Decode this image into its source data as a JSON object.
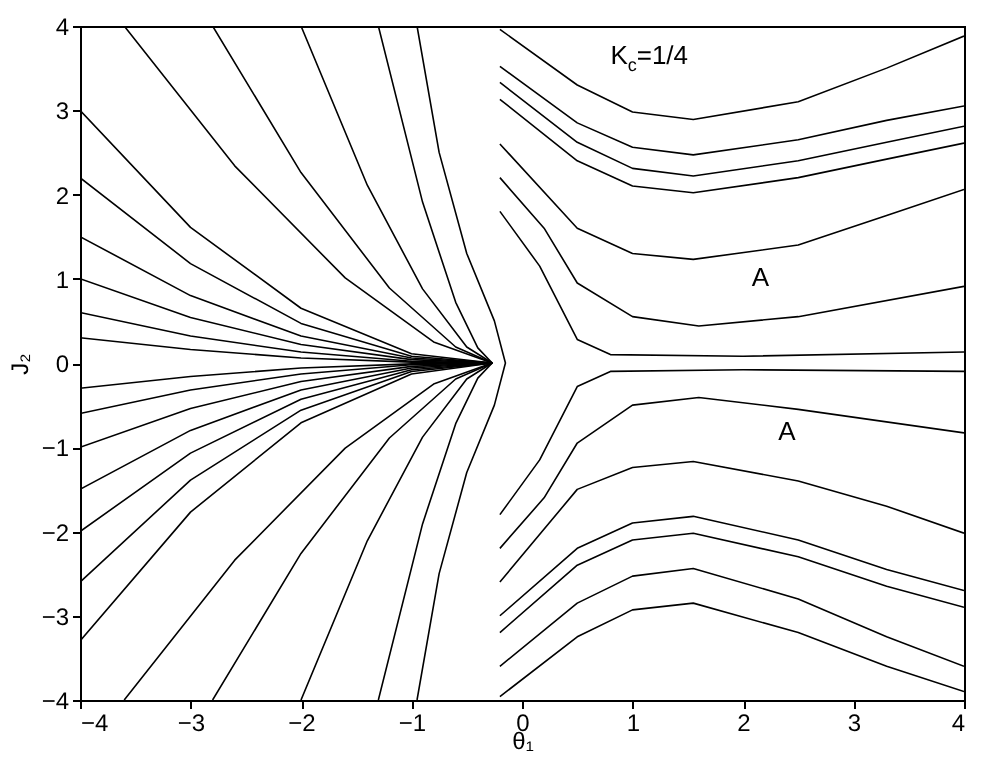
{
  "chart_data": {
    "type": "line",
    "xlabel": "θ₁",
    "ylabel": "J₂",
    "xlim": [
      -4,
      4
    ],
    "ylim": [
      -4,
      4
    ],
    "xticks": [
      -4,
      -3,
      -2,
      -1,
      0,
      1,
      2,
      3,
      4
    ],
    "yticks": [
      -4,
      -3,
      -2,
      -1,
      0,
      1,
      2,
      3,
      4
    ],
    "grid": false,
    "marker": "none",
    "line_style": "solid",
    "annotations": [
      "K$_{c}$=1/4",
      "A",
      "A"
    ],
    "series": [
      {
        "color": "#000000",
        "x": [
          -4,
          -3,
          -2,
          -1,
          -0.27
        ],
        "values": [
          3.0,
          1.61,
          0.65,
          0.11,
          0
        ]
      },
      {
        "color": "#000000",
        "x": [
          -4,
          -3,
          -2,
          -1,
          -0.27
        ],
        "values": [
          2.2,
          1.18,
          0.47,
          0.08,
          0
        ]
      },
      {
        "color": "#000000",
        "x": [
          -4,
          -3,
          -2,
          -1,
          -0.27
        ],
        "values": [
          1.5,
          0.8,
          0.32,
          0.06,
          0
        ]
      },
      {
        "color": "#000000",
        "x": [
          -4,
          -3,
          -2,
          -1,
          -0.27
        ],
        "values": [
          1.0,
          0.54,
          0.22,
          0.04,
          0
        ]
      },
      {
        "color": "#000000",
        "x": [
          -4,
          -3,
          -2,
          -1,
          -0.27
        ],
        "values": [
          0.6,
          0.32,
          0.13,
          0.02,
          0
        ]
      },
      {
        "color": "#000000",
        "x": [
          -4,
          -3,
          -2,
          -1,
          -0.27
        ],
        "values": [
          0.3,
          0.16,
          0.06,
          0.01,
          0
        ]
      },
      {
        "color": "#000000",
        "x": [
          -4,
          -3,
          -2,
          -1,
          -0.27
        ],
        "values": [
          -0.3,
          -0.16,
          -0.06,
          -0.01,
          0
        ]
      },
      {
        "color": "#000000",
        "x": [
          -4,
          -3,
          -2,
          -1,
          -0.27
        ],
        "values": [
          -0.6,
          -0.32,
          -0.13,
          -0.02,
          0
        ]
      },
      {
        "color": "#000000",
        "x": [
          -4,
          -3,
          -2,
          -1,
          -0.27
        ],
        "values": [
          -1.0,
          -0.54,
          -0.22,
          -0.04,
          0
        ]
      },
      {
        "color": "#000000",
        "x": [
          -4,
          -3,
          -2,
          -1,
          -0.27
        ],
        "values": [
          -1.5,
          -0.8,
          -0.32,
          -0.06,
          0
        ]
      },
      {
        "color": "#000000",
        "x": [
          -4,
          -3,
          -2,
          -1,
          -0.27
        ],
        "values": [
          -2.0,
          -1.07,
          -0.43,
          -0.08,
          0
        ]
      },
      {
        "color": "#000000",
        "x": [
          -4,
          -3,
          -2,
          -1,
          -0.27
        ],
        "values": [
          -2.6,
          -1.39,
          -0.56,
          -0.1,
          0
        ]
      },
      {
        "color": "#000000",
        "x": [
          -4,
          -3,
          -2,
          -1,
          -0.27
        ],
        "values": [
          -3.3,
          -1.77,
          -0.71,
          -0.13,
          0
        ]
      },
      {
        "color": "#000000",
        "x": [
          -3.6,
          -2.6,
          -1.6,
          -0.8,
          -0.27
        ],
        "values": [
          4,
          2.34,
          1.01,
          0.25,
          0
        ]
      },
      {
        "color": "#000000",
        "x": [
          -2.8,
          -2,
          -1.2,
          -0.6,
          -0.27
        ],
        "values": [
          4,
          2.26,
          0.89,
          0.19,
          0
        ]
      },
      {
        "color": "#000000",
        "x": [
          -2,
          -1.4,
          -0.9,
          -0.5,
          -0.27
        ],
        "values": [
          4,
          2.11,
          0.88,
          0.19,
          0
        ]
      },
      {
        "color": "#000000",
        "x": [
          -1.3,
          -0.9,
          -0.6,
          -0.4,
          -0.27
        ],
        "values": [
          4,
          1.91,
          0.72,
          0.18,
          0
        ]
      },
      {
        "color": "#000000",
        "x": [
          -3.6,
          -2.6,
          -1.6,
          -0.8,
          -0.27
        ],
        "values": [
          -4,
          -2.34,
          -1.01,
          -0.25,
          0
        ]
      },
      {
        "color": "#000000",
        "x": [
          -2.8,
          -2,
          -1.2,
          -0.6,
          -0.27
        ],
        "values": [
          -4,
          -2.26,
          -0.89,
          -0.19,
          0
        ]
      },
      {
        "color": "#000000",
        "x": [
          -2,
          -1.4,
          -0.9,
          -0.5,
          -0.27
        ],
        "values": [
          -4,
          -2.11,
          -0.88,
          -0.19,
          0
        ]
      },
      {
        "color": "#000000",
        "x": [
          -1.3,
          -0.9,
          -0.6,
          -0.4,
          -0.27
        ],
        "values": [
          -4,
          -1.91,
          -0.72,
          -0.18,
          0
        ]
      },
      {
        "color": "#000000",
        "x": [
          -0.95,
          -0.75,
          -0.5,
          -0.25,
          -0.15,
          -0.25,
          -0.5,
          -0.75,
          -0.95
        ],
        "values": [
          -4,
          -2.5,
          -1.3,
          -0.5,
          0,
          0.5,
          1.3,
          2.5,
          4
        ]
      },
      {
        "color": "#000000",
        "x": [
          -0.2,
          0.5,
          1.0,
          1.55,
          2.5,
          3.3,
          4
        ],
        "values": [
          3.96,
          3.3,
          2.98,
          2.89,
          3.1,
          3.5,
          3.88
        ]
      },
      {
        "color": "#000000",
        "x": [
          -0.2,
          0.5,
          1.0,
          1.55,
          2.5,
          3.3,
          4
        ],
        "values": [
          3.52,
          2.85,
          2.56,
          2.47,
          2.65,
          2.88,
          3.05
        ]
      },
      {
        "color": "#000000",
        "x": [
          -0.2,
          0.5,
          1.0,
          1.55,
          2.5,
          3.3,
          4
        ],
        "values": [
          3.33,
          2.62,
          2.31,
          2.22,
          2.4,
          2.62,
          2.81
        ]
      },
      {
        "color": "#000000",
        "x": [
          -0.2,
          0.5,
          1.0,
          1.55,
          2.5,
          3.3,
          4
        ],
        "values": [
          3.13,
          2.4,
          2.1,
          2.02,
          2.2,
          2.42,
          2.61
        ]
      },
      {
        "color": "#000000",
        "x": [
          -0.2,
          0.5,
          1.0,
          1.55,
          2.5,
          3.3,
          4
        ],
        "values": [
          2.6,
          1.6,
          1.3,
          1.23,
          1.4,
          1.75,
          2.06
        ]
      },
      {
        "color": "#000000",
        "x": [
          -0.2,
          0.2,
          0.5,
          1.0,
          1.6,
          2.5,
          4
        ],
        "values": [
          2.2,
          1.6,
          0.95,
          0.55,
          0.44,
          0.55,
          0.91
        ]
      },
      {
        "color": "#000000",
        "x": [
          -0.2,
          0.16,
          0.5,
          0.8,
          2,
          4
        ],
        "values": [
          1.8,
          1.15,
          0.28,
          0.1,
          0.08,
          0.13
        ]
      },
      {
        "color": "#000000",
        "x": [
          -0.2,
          0.16,
          0.5,
          0.8,
          2,
          4
        ],
        "values": [
          -1.8,
          -1.15,
          -0.28,
          -0.1,
          -0.08,
          -0.1
        ]
      },
      {
        "color": "#000000",
        "x": [
          -0.2,
          0.2,
          0.5,
          1.0,
          1.6,
          2.5,
          4
        ],
        "values": [
          -2.2,
          -1.6,
          -0.95,
          -0.5,
          -0.41,
          -0.55,
          -0.83
        ]
      },
      {
        "color": "#000000",
        "x": [
          -0.2,
          0.5,
          1.0,
          1.55,
          2.5,
          3.3,
          4
        ],
        "values": [
          -2.6,
          -1.5,
          -1.24,
          -1.17,
          -1.4,
          -1.7,
          -2.02
        ]
      },
      {
        "color": "#000000",
        "x": [
          -0.2,
          0.5,
          1.0,
          1.55,
          2.5,
          3.3,
          4
        ],
        "values": [
          -3.0,
          -2.2,
          -1.9,
          -1.82,
          -2.1,
          -2.45,
          -2.7
        ]
      },
      {
        "color": "#000000",
        "x": [
          -0.2,
          0.5,
          1.0,
          1.55,
          2.5,
          3.3,
          4
        ],
        "values": [
          -3.2,
          -2.4,
          -2.1,
          -2.02,
          -2.3,
          -2.65,
          -2.9
        ]
      },
      {
        "color": "#000000",
        "x": [
          -0.2,
          0.5,
          1.0,
          1.55,
          2.5,
          3.3,
          4
        ],
        "values": [
          -3.6,
          -2.85,
          -2.53,
          -2.44,
          -2.8,
          -3.25,
          -3.6
        ]
      },
      {
        "color": "#000000",
        "x": [
          -0.2,
          0.5,
          1.0,
          1.55,
          2.5,
          3.3,
          4
        ],
        "values": [
          -3.96,
          -3.25,
          -2.93,
          -2.85,
          -3.2,
          -3.6,
          -3.9
        ]
      }
    ]
  }
}
